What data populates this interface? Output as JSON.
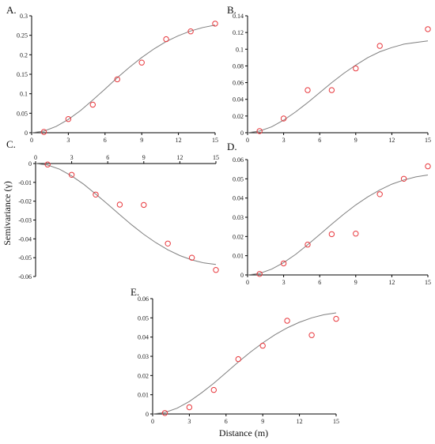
{
  "figure": {
    "ylabel": "Semivariance (γ)",
    "xlabel": "Distance (m)"
  },
  "style": {
    "fit_color": "#7f7f7f",
    "point_color": "#e8383d",
    "axis_color": "#000000"
  },
  "chart_data": [
    {
      "panel": "A.",
      "type": "scatter",
      "xlim": [
        0,
        15
      ],
      "ylim": [
        0,
        0.3
      ],
      "xticks": [
        "0",
        "3",
        "6",
        "9",
        "12",
        "15"
      ],
      "yticks": [
        "0",
        "0.05",
        "0.1",
        "0.15",
        "0.2",
        "0.25",
        "0.3"
      ],
      "series": [
        {
          "kind": "points",
          "x": [
            1,
            3,
            5,
            7,
            9,
            11,
            13,
            15
          ],
          "y": [
            0.002,
            0.035,
            0.072,
            0.137,
            0.18,
            0.24,
            0.26,
            0.28
          ]
        },
        {
          "kind": "fit",
          "x": [
            0,
            1,
            2,
            3,
            4,
            5,
            6,
            7,
            8,
            9,
            10,
            11,
            12,
            13,
            14,
            15
          ],
          "y": [
            0,
            0.004,
            0.016,
            0.034,
            0.057,
            0.084,
            0.112,
            0.141,
            0.168,
            0.193,
            0.215,
            0.234,
            0.249,
            0.261,
            0.27,
            0.276
          ]
        }
      ]
    },
    {
      "panel": "B.",
      "type": "scatter",
      "xlim": [
        0,
        15
      ],
      "ylim": [
        0,
        0.14
      ],
      "xticks": [
        "0",
        "3",
        "6",
        "9",
        "12",
        "15"
      ],
      "yticks": [
        "0",
        "0.02",
        "0.04",
        "0.06",
        "0.08",
        "0.1",
        "0.12",
        "0.14"
      ],
      "series": [
        {
          "kind": "points",
          "x": [
            1,
            3,
            5,
            7,
            9,
            11,
            15
          ],
          "y": [
            0.002,
            0.017,
            0.051,
            0.051,
            0.077,
            0.104,
            0.124
          ]
        },
        {
          "kind": "fit",
          "x": [
            0,
            1,
            2,
            3,
            4,
            5,
            6,
            7,
            8,
            9,
            10,
            11,
            12,
            13,
            14,
            15
          ],
          "y": [
            0,
            0.002,
            0.007,
            0.015,
            0.025,
            0.036,
            0.048,
            0.06,
            0.071,
            0.081,
            0.09,
            0.097,
            0.102,
            0.106,
            0.108,
            0.11
          ]
        }
      ]
    },
    {
      "panel": "C.",
      "type": "scatter",
      "xlim": [
        0,
        15
      ],
      "ylim": [
        -0.06,
        0
      ],
      "xticks": [
        "0",
        "3",
        "6",
        "9",
        "12",
        "15"
      ],
      "yticks": [
        "0",
        "-0.01",
        "-0.02",
        "-0.03",
        "-0.04",
        "-0.05",
        "-0.06"
      ],
      "series": [
        {
          "kind": "points",
          "x": [
            1,
            3,
            5,
            7,
            9,
            11,
            13,
            15
          ],
          "y": [
            -0.0005,
            -0.006,
            -0.0165,
            -0.0218,
            -0.022,
            -0.0425,
            -0.05,
            -0.0565
          ]
        },
        {
          "kind": "fit",
          "x": [
            0,
            1,
            2,
            3,
            4,
            5,
            6,
            7,
            8,
            9,
            10,
            11,
            12,
            13,
            14,
            15
          ],
          "y": [
            0,
            -0.0008,
            -0.003,
            -0.0066,
            -0.011,
            -0.0162,
            -0.0216,
            -0.0272,
            -0.0326,
            -0.0376,
            -0.042,
            -0.0458,
            -0.0489,
            -0.0512,
            -0.0528,
            -0.0536
          ]
        }
      ]
    },
    {
      "panel": "D.",
      "type": "scatter",
      "xlim": [
        0,
        15
      ],
      "ylim": [
        0,
        0.06
      ],
      "xticks": [
        "0",
        "3",
        "6",
        "9",
        "12",
        "15"
      ],
      "yticks": [
        "0",
        "0.01",
        "0.02",
        "0.03",
        "0.04",
        "0.05",
        "0.06"
      ],
      "series": [
        {
          "kind": "points",
          "x": [
            1,
            3,
            5,
            7,
            9,
            11,
            13,
            15
          ],
          "y": [
            0.0005,
            0.006,
            0.0158,
            0.0212,
            0.0215,
            0.042,
            0.05,
            0.0565
          ]
        },
        {
          "kind": "fit",
          "x": [
            0,
            1,
            2,
            3,
            4,
            5,
            6,
            7,
            8,
            9,
            10,
            11,
            12,
            13,
            14,
            15
          ],
          "y": [
            0,
            0.0008,
            0.003,
            0.0064,
            0.0107,
            0.0157,
            0.021,
            0.0264,
            0.0316,
            0.0364,
            0.0406,
            0.0442,
            0.0472,
            0.0494,
            0.051,
            0.052
          ]
        }
      ]
    },
    {
      "panel": "E.",
      "type": "scatter",
      "xlim": [
        0,
        15
      ],
      "ylim": [
        0,
        0.06
      ],
      "xticks": [
        "0",
        "3",
        "6",
        "9",
        "12",
        "15"
      ],
      "yticks": [
        "0",
        "0.01",
        "0.02",
        "0.03",
        "0.04",
        "0.05",
        "0.06"
      ],
      "series": [
        {
          "kind": "points",
          "x": [
            1,
            3,
            5,
            7,
            9,
            11,
            13,
            15
          ],
          "y": [
            0.0005,
            0.0035,
            0.0125,
            0.0285,
            0.0355,
            0.0485,
            0.041,
            0.0495
          ]
        },
        {
          "kind": "fit",
          "x": [
            0,
            1,
            2,
            3,
            4,
            5,
            6,
            7,
            8,
            9,
            10,
            11,
            12,
            13,
            14,
            15
          ],
          "y": [
            0,
            0.0008,
            0.003,
            0.0065,
            0.011,
            0.016,
            0.0215,
            0.027,
            0.0322,
            0.037,
            0.0412,
            0.0448,
            0.0477,
            0.05,
            0.0516,
            0.0526
          ]
        }
      ]
    }
  ]
}
